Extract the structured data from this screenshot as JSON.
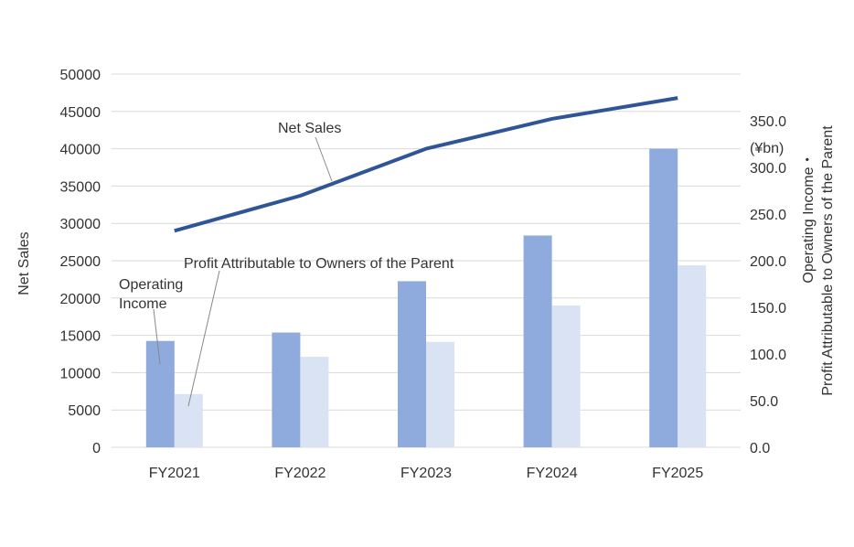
{
  "chart_data": {
    "type": "bar",
    "categories": [
      "FY2021",
      "FY2022",
      "FY2023",
      "FY2024",
      "FY2025"
    ],
    "left_axis": {
      "label": "Net Sales",
      "ylim": [
        0,
        50000
      ],
      "ticks": [
        "0",
        "5000",
        "10000",
        "15000",
        "20000",
        "25000",
        "30000",
        "35000",
        "40000",
        "45000",
        "50000"
      ]
    },
    "right_axis": {
      "label_line1": "Operating Income・",
      "label_line2": "Profit Attributable to Owners of the Parent",
      "unit": "(¥bn)",
      "ylim": [
        0,
        350
      ],
      "ticks": [
        "0.0",
        "50.0",
        "100.0",
        "150.0",
        "200.0",
        "250.0",
        "300.0",
        "350.0"
      ]
    },
    "series": [
      {
        "name": "Net Sales",
        "type": "line",
        "axis": "left",
        "color": "#2f5597",
        "values": [
          29000,
          33700,
          40000,
          44000,
          46800
        ]
      },
      {
        "name": "Operating Income",
        "type": "bar",
        "axis": "right",
        "color": "#8faadc",
        "values": [
          114,
          123,
          178,
          227,
          320
        ]
      },
      {
        "name": "Profit Attributable to Owners of the Parent",
        "type": "bar",
        "axis": "right",
        "color": "#dae3f3",
        "values": [
          57,
          97,
          113,
          152,
          195
        ]
      }
    ],
    "annotations": {
      "net_sales": "Net Sales",
      "profit": "Profit Attributable to Owners of the Parent",
      "operating_line1": "Operating",
      "operating_line2": "Income"
    },
    "grid": true
  }
}
